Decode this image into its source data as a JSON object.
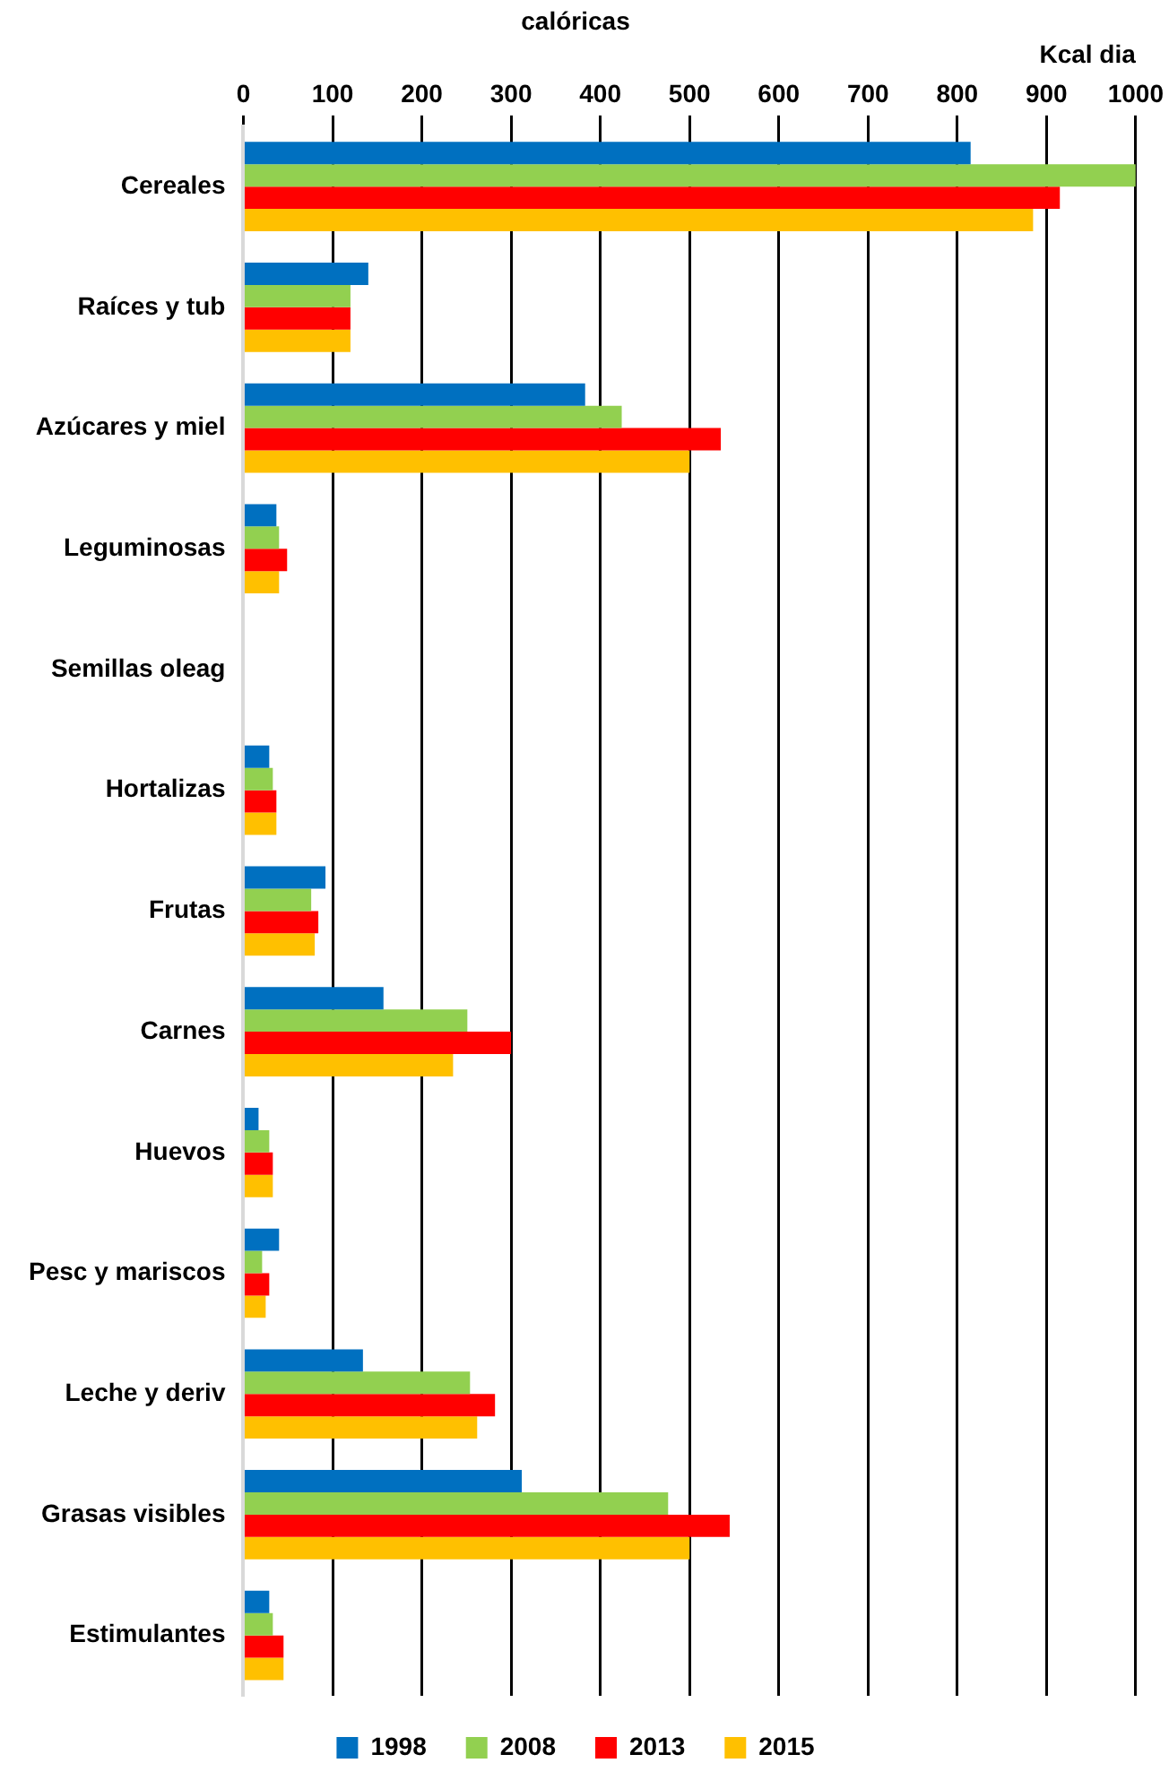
{
  "chart_data": {
    "type": "bar",
    "orientation": "horizontal",
    "title": "calóricas",
    "xlabel": "Kcal dia",
    "categories": [
      "Cereales",
      "Raíces y tub",
      "Azúcares y miel",
      "Leguminosas",
      "Semillas oleag",
      "Hortalizas",
      "Frutas",
      "Carnes",
      "Huevos",
      "Pesc y mariscos",
      "Leche y deriv",
      "Grasas visibles",
      "Estimulantes"
    ],
    "series": [
      {
        "name": "1998",
        "color": "#0070c0",
        "values": [
          815,
          140,
          383,
          37,
          0,
          29,
          92,
          157,
          17,
          40,
          134,
          312,
          29
        ]
      },
      {
        "name": "2008",
        "color": "#92d050",
        "values": [
          1000,
          120,
          424,
          40,
          0,
          33,
          76,
          251,
          29,
          21,
          254,
          476,
          33
        ]
      },
      {
        "name": "2013",
        "color": "#ff0000",
        "values": [
          915,
          120,
          535,
          49,
          0,
          37,
          84,
          300,
          33,
          29,
          282,
          545,
          45
        ]
      },
      {
        "name": "2015",
        "color": "#ffc000",
        "values": [
          885,
          120,
          500,
          40,
          0,
          37,
          80,
          235,
          33,
          25,
          262,
          500,
          45
        ]
      }
    ],
    "xlim": [
      0,
      1000
    ],
    "xticks": [
      0,
      100,
      200,
      300,
      400,
      500,
      600,
      700,
      800,
      900,
      1000
    ],
    "grid": "x",
    "legend": "bottom"
  }
}
